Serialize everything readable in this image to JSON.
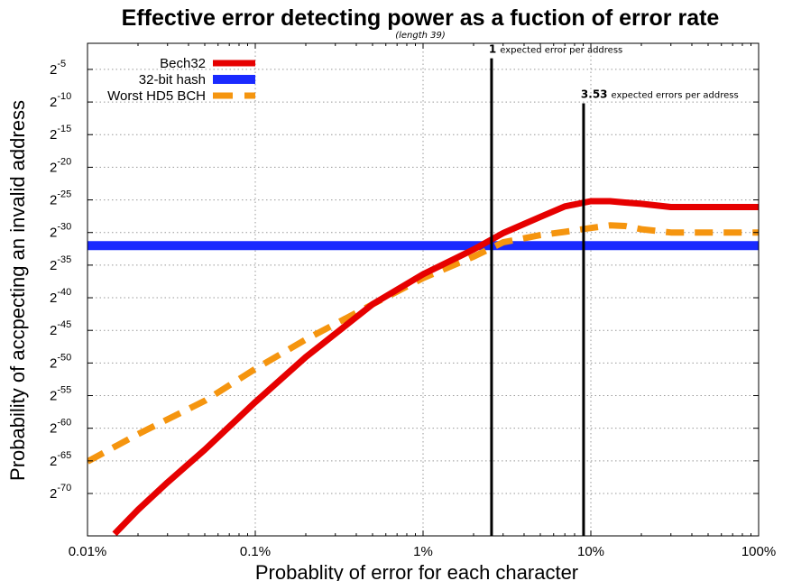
{
  "chart_data": {
    "type": "line",
    "title": "Effective error detecting power as a fuction of error rate",
    "subtitle": "(length 39)",
    "xlabel": "Probablity of error for each character",
    "ylabel": "Probability of accpecting an invalid address",
    "x_scale": "log",
    "xlim": [
      0.01,
      100
    ],
    "x_ticks": [
      {
        "value": 0.01,
        "label": "0.01%"
      },
      {
        "value": 0.1,
        "label": "0.1%"
      },
      {
        "value": 1,
        "label": "1%"
      },
      {
        "value": 10,
        "label": "10%"
      },
      {
        "value": 100,
        "label": "100%"
      }
    ],
    "y_scale": "log2",
    "ylim": [
      -76.5,
      -1
    ],
    "y_ticks": [
      {
        "value": -5,
        "base": "2",
        "exp": "-5"
      },
      {
        "value": -10,
        "base": "2",
        "exp": "-10"
      },
      {
        "value": -15,
        "base": "2",
        "exp": "-15"
      },
      {
        "value": -20,
        "base": "2",
        "exp": "-20"
      },
      {
        "value": -25,
        "base": "2",
        "exp": "-25"
      },
      {
        "value": -30,
        "base": "2",
        "exp": "-30"
      },
      {
        "value": -35,
        "base": "2",
        "exp": "-35"
      },
      {
        "value": -40,
        "base": "2",
        "exp": "-40"
      },
      {
        "value": -45,
        "base": "2",
        "exp": "-45"
      },
      {
        "value": -50,
        "base": "2",
        "exp": "-50"
      },
      {
        "value": -55,
        "base": "2",
        "exp": "-55"
      },
      {
        "value": -60,
        "base": "2",
        "exp": "-60"
      },
      {
        "value": -65,
        "base": "2",
        "exp": "-65"
      },
      {
        "value": -70,
        "base": "2",
        "exp": "-70"
      }
    ],
    "grid": true,
    "legend_position": "top-left",
    "series": [
      {
        "name": "Bech32",
        "color": "#e60000",
        "style": "solid",
        "x": [
          0.0145,
          0.02,
          0.03,
          0.05,
          0.1,
          0.2,
          0.5,
          1,
          2,
          3,
          5,
          7,
          10,
          13,
          16,
          20,
          30,
          50,
          100
        ],
        "y": [
          -76.2,
          -72.5,
          -68.3,
          -63.3,
          -56.0,
          -49.1,
          -41.0,
          -36.4,
          -32.6,
          -30.1,
          -27.6,
          -26.0,
          -25.2,
          -25.2,
          -25.4,
          -25.6,
          -26.1,
          -26.1,
          -26.1
        ]
      },
      {
        "name": "32-bit hash",
        "color": "#1a2aff",
        "style": "solid",
        "x": [
          0.01,
          100
        ],
        "y": [
          -32,
          -32
        ]
      },
      {
        "name": "Worst HD5 BCH",
        "color": "#f5950f",
        "style": "dashed",
        "x": [
          0.01,
          0.02,
          0.05,
          0.1,
          0.2,
          0.5,
          1,
          2,
          3,
          5,
          7,
          10,
          13,
          16,
          20,
          30,
          50,
          100
        ],
        "y": [
          -65.1,
          -60.9,
          -55.8,
          -50.9,
          -46.4,
          -41.0,
          -37.0,
          -33.7,
          -31.5,
          -30.4,
          -29.9,
          -29.3,
          -28.9,
          -29.0,
          -29.5,
          -30.0,
          -30.0,
          -30.0
        ]
      }
    ],
    "annotations": [
      {
        "x": 2.56,
        "y_top": -3.3,
        "bold": "1",
        "rest": "expected error per address"
      },
      {
        "x": 9.05,
        "y_top": -10.2,
        "bold": "3.53",
        "rest": "expected errors per address"
      }
    ]
  }
}
